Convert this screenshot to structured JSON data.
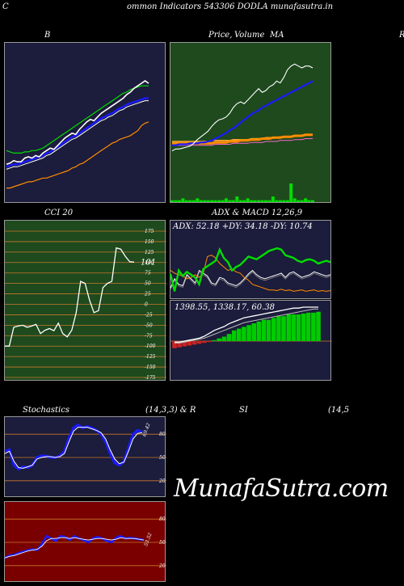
{
  "header": {
    "left": "C",
    "title": "ommon  Indicators 543306  DODLA munafasutra.in"
  },
  "watermark": "MunafaSutra.com",
  "panels": {
    "bollinger": {
      "title": "B"
    },
    "price": {
      "title_a": "Price,",
      "title_b": "Volume",
      "title_c": "MA",
      "right_edge": "R"
    },
    "cci": {
      "title": "CCI 20",
      "value_label": "101",
      "ticks": [
        "175",
        "150",
        "125",
        "100",
        "75",
        "50",
        "25",
        "0",
        "-25",
        "-50",
        "-75",
        "-100",
        "-125",
        "-150",
        "-175"
      ]
    },
    "adx": {
      "title": "ADX  & MACD 12,26,9",
      "readout": "ADX: 52.18  +DY: 34.18  -DY: 10.74"
    },
    "macd": {
      "readout": "1398.55,  1338.17,  60.38"
    },
    "stoch": {
      "title_left": "Stochastics",
      "title_right": "(14,3,3) & R",
      "value_label": "69.42",
      "ticks": [
        "80",
        "50",
        "20"
      ]
    },
    "rsi": {
      "title_left": "SI",
      "title_right": "(14,5",
      "value_label": "53.52",
      "ticks": [
        "80",
        "50",
        "20"
      ]
    }
  },
  "colors": {
    "bollinger_bg": "#1c1c3c",
    "price_bg": "#1e4a1e",
    "cci_bg": "#1e4a1e",
    "adx_bg": "#1c1c3c",
    "stoch_bg": "#1c1c3c",
    "rsi_bg": "#7a0000",
    "level_line": "#c8792a",
    "series_white": "#ffffff",
    "series_blue": "#1a1aff",
    "series_green": "#00dd00",
    "series_orange": "#ff8c00",
    "macd_hist_pos": "#00cc00",
    "macd_hist_neg": "#cc2222"
  },
  "chart_data": [
    {
      "type": "line",
      "name": "bollinger",
      "x": [
        0,
        1,
        2,
        3,
        4,
        5,
        6,
        7,
        8,
        9,
        10,
        11,
        12,
        13,
        14,
        15,
        16,
        17,
        18,
        19,
        20,
        21,
        22,
        23,
        24,
        25,
        26,
        27,
        28,
        29,
        30,
        31,
        32,
        33,
        34,
        35,
        36,
        37,
        38,
        39
      ],
      "series": [
        {
          "values": [
            -1,
            0,
            2,
            1,
            1,
            4,
            5,
            4,
            6,
            5,
            8,
            10,
            12,
            11,
            14,
            17,
            20,
            22,
            24,
            23,
            27,
            30,
            33,
            35,
            34,
            37,
            40,
            42,
            44,
            46,
            48,
            50,
            52,
            55,
            57,
            60,
            62,
            64,
            66,
            64
          ]
        },
        {
          "values": [
            -3,
            -2,
            -1,
            -1,
            0,
            1,
            2,
            3,
            4,
            5,
            6,
            8,
            9,
            11,
            13,
            15,
            17,
            19,
            21,
            22,
            24,
            26,
            28,
            30,
            32,
            34,
            36,
            37,
            39,
            40,
            42,
            44,
            45,
            47,
            48,
            49,
            50,
            51,
            52,
            52
          ]
        },
        {
          "values": [
            -20,
            -20,
            -19,
            -18,
            -17,
            -16,
            -15,
            -15,
            -14,
            -13,
            -12,
            -12,
            -11,
            -10,
            -9,
            -8,
            -7,
            -6,
            -4,
            -3,
            -1,
            0,
            2,
            4,
            6,
            8,
            10,
            12,
            14,
            16,
            17,
            19,
            20,
            21,
            22,
            24,
            26,
            30,
            32,
            33
          ]
        },
        {
          "values": [
            10,
            9,
            8,
            8,
            8,
            9,
            9,
            10,
            10,
            11,
            12,
            14,
            16,
            18,
            20,
            22,
            24,
            26,
            28,
            30,
            32,
            34,
            36,
            38,
            40,
            42,
            44,
            46,
            48,
            50,
            52,
            54,
            56,
            57,
            59,
            60,
            61,
            62,
            62,
            62
          ]
        }
      ]
    },
    {
      "type": "line",
      "name": "price_ma",
      "x": [
        0,
        1,
        2,
        3,
        4,
        5,
        6,
        7,
        8,
        9,
        10,
        11,
        12,
        13,
        14,
        15,
        16,
        17,
        18,
        19,
        20,
        21,
        22,
        23,
        24,
        25,
        26,
        27,
        28,
        29,
        30,
        31,
        32,
        33,
        34,
        35,
        36,
        37,
        38,
        39
      ],
      "series": [
        {
          "values": [
            -6,
            -4,
            -4,
            -3,
            -2,
            -1,
            2,
            6,
            9,
            12,
            15,
            20,
            24,
            27,
            28,
            30,
            34,
            40,
            44,
            46,
            44,
            48,
            52,
            56,
            60,
            56,
            58,
            62,
            64,
            68,
            66,
            72,
            80,
            84,
            86,
            84,
            82,
            84,
            84,
            82
          ]
        },
        {
          "values": [
            0,
            0,
            1,
            1,
            1,
            2,
            2,
            2,
            3,
            3,
            4,
            5,
            7,
            9,
            11,
            13,
            16,
            18,
            21,
            24,
            27,
            30,
            33,
            35,
            37,
            40,
            42,
            44,
            46,
            48,
            50,
            52,
            54,
            56,
            58,
            60,
            62,
            64,
            66,
            68
          ]
        },
        {
          "values": [
            2,
            2,
            2,
            2,
            2,
            2,
            2,
            2,
            2,
            2,
            2,
            2,
            3,
            3,
            3,
            3,
            4,
            4,
            4,
            5,
            5,
            5,
            6,
            6,
            6,
            7,
            7,
            7,
            8,
            8,
            8,
            9,
            9,
            9,
            10,
            10,
            10,
            11,
            11,
            11
          ]
        },
        {
          "values": [
            4,
            4,
            4,
            4,
            4,
            4,
            4,
            4,
            4,
            4,
            4,
            5,
            5,
            5,
            5,
            5,
            5,
            6,
            6,
            6,
            6,
            6,
            7,
            7,
            7,
            7,
            8,
            8,
            8,
            8,
            9,
            9,
            9,
            9,
            10,
            10,
            10,
            11,
            11,
            11
          ]
        },
        {
          "values": [
            0,
            0,
            0,
            0,
            0,
            0,
            0,
            0,
            0,
            0,
            0,
            0,
            1,
            1,
            1,
            1,
            1,
            2,
            2,
            2,
            2,
            2,
            3,
            3,
            3,
            3,
            4,
            4,
            4,
            4,
            5,
            5,
            5,
            5,
            6,
            6,
            6,
            7,
            7,
            7
          ]
        }
      ],
      "volume": [
        1,
        1,
        1,
        2,
        1,
        1,
        1,
        2,
        1,
        1,
        1,
        1,
        1,
        1,
        1,
        2,
        1,
        1,
        3,
        1,
        1,
        2,
        1,
        1,
        1,
        1,
        1,
        1,
        3,
        1,
        1,
        1,
        1,
        10,
        2,
        1,
        1,
        2,
        1,
        1
      ]
    },
    {
      "type": "line",
      "name": "cci",
      "ylim": [
        -175,
        175
      ],
      "x": [
        0,
        1,
        2,
        3,
        4,
        5,
        6,
        7,
        8,
        9,
        10,
        11,
        12,
        13,
        14,
        15,
        16,
        17,
        18,
        19,
        20,
        21,
        22,
        23,
        24,
        25,
        26,
        27,
        28,
        29
      ],
      "values": [
        -100,
        -100,
        -55,
        -52,
        -50,
        -55,
        -52,
        -48,
        -70,
        -62,
        -58,
        -63,
        -45,
        -70,
        -78,
        -62,
        -20,
        55,
        50,
        10,
        -20,
        -15,
        40,
        50,
        55,
        135,
        132,
        115,
        102,
        101
      ]
    },
    {
      "type": "line",
      "name": "adx",
      "x": [
        0,
        1,
        2,
        3,
        4,
        5,
        6,
        7,
        8,
        9,
        10,
        11,
        12,
        13,
        14,
        15,
        16,
        17,
        18,
        19,
        20,
        21,
        22,
        23,
        24,
        25,
        26,
        27,
        28,
        29,
        30,
        31,
        32,
        33,
        34,
        35,
        36,
        37,
        38,
        39
      ],
      "series": [
        {
          "values": [
            35,
            10,
            40,
            32,
            38,
            34,
            30,
            20,
            42,
            46,
            50,
            54,
            70,
            58,
            52,
            40,
            45,
            48,
            54,
            60,
            58,
            56,
            60,
            64,
            68,
            70,
            72,
            70,
            62,
            60,
            58,
            54,
            52,
            55,
            56,
            54,
            50,
            52,
            54,
            52
          ]
        },
        {
          "values": [
            15,
            28,
            20,
            18,
            34,
            28,
            22,
            40,
            36,
            32,
            22,
            20,
            30,
            28,
            22,
            20,
            18,
            22,
            28,
            35,
            40,
            34,
            30,
            28,
            30,
            32,
            34,
            36,
            30,
            36,
            38,
            34,
            30,
            32,
            34,
            38,
            36,
            34,
            32,
            34
          ]
        },
        {
          "values": [
            40,
            36,
            34,
            32,
            28,
            30,
            34,
            30,
            36,
            60,
            62,
            58,
            50,
            45,
            40,
            42,
            38,
            36,
            30,
            26,
            20,
            18,
            16,
            14,
            12,
            12,
            11,
            13,
            11,
            12,
            10,
            11,
            12,
            10,
            11,
            12,
            10,
            11,
            10,
            11
          ]
        }
      ]
    },
    {
      "type": "line",
      "name": "macd",
      "x": [
        0,
        1,
        2,
        3,
        4,
        5,
        6,
        7,
        8,
        9,
        10,
        11,
        12,
        13,
        14,
        15,
        16,
        17,
        18,
        19,
        20,
        21,
        22,
        23,
        24,
        25,
        26,
        27,
        28,
        29
      ],
      "series": [
        {
          "values": [
            -1,
            -1,
            0,
            1,
            2,
            3,
            5,
            8,
            11,
            13,
            15,
            18,
            20,
            22,
            24,
            25,
            26,
            27,
            28,
            29,
            30,
            31,
            32,
            33,
            34,
            34,
            35,
            35,
            35,
            35
          ]
        },
        {
          "values": [
            -2,
            -2,
            -1,
            0,
            1,
            2,
            3,
            5,
            7,
            9,
            11,
            13,
            15,
            17,
            19,
            20,
            21,
            22,
            23,
            24,
            25,
            26,
            27,
            28,
            29,
            30,
            31,
            32,
            33,
            33
          ]
        }
      ],
      "histogram": [
        -8,
        -7,
        -6,
        -5,
        -4,
        -3,
        -2,
        -1,
        1,
        3,
        5,
        8,
        12,
        14,
        16,
        18,
        20,
        22,
        24,
        24,
        26,
        28,
        28,
        30,
        30,
        30,
        31,
        32,
        32,
        33
      ]
    },
    {
      "type": "line",
      "name": "stochastics",
      "ylim": [
        0,
        100
      ],
      "x": [
        0,
        1,
        2,
        3,
        4,
        5,
        6,
        7,
        8,
        9,
        10,
        11,
        12,
        13,
        14,
        15,
        16,
        17,
        18,
        19,
        20,
        21,
        22,
        23,
        24,
        25,
        26,
        27,
        28,
        29,
        30
      ],
      "series": [
        {
          "values": [
            58,
            60,
            40,
            35,
            38,
            37,
            40,
            50,
            52,
            52,
            50,
            50,
            52,
            58,
            75,
            88,
            92,
            88,
            90,
            88,
            85,
            80,
            70,
            55,
            43,
            40,
            45,
            62,
            80,
            85,
            83
          ]
        },
        {
          "values": [
            55,
            58,
            45,
            37,
            36,
            38,
            40,
            48,
            50,
            51,
            51,
            50,
            51,
            55,
            70,
            84,
            89,
            89,
            89,
            87,
            85,
            82,
            74,
            60,
            48,
            42,
            44,
            58,
            74,
            81,
            82
          ]
        }
      ]
    },
    {
      "type": "line",
      "name": "rsi",
      "ylim": [
        0,
        100
      ],
      "x": [
        0,
        1,
        2,
        3,
        4,
        5,
        6,
        7,
        8,
        9,
        10,
        11,
        12,
        13,
        14,
        15,
        16,
        17,
        18,
        19,
        20,
        21,
        22,
        23,
        24,
        25,
        26,
        27,
        28,
        29,
        30
      ],
      "series": [
        {
          "values": [
            30,
            33,
            34,
            36,
            38,
            40,
            41,
            40,
            48,
            58,
            55,
            52,
            58,
            57,
            53,
            58,
            55,
            53,
            50,
            55,
            57,
            55,
            52,
            50,
            56,
            58,
            55,
            56,
            55,
            54,
            53
          ]
        },
        {
          "values": [
            30,
            32,
            33,
            35,
            37,
            39,
            40,
            41,
            45,
            52,
            55,
            55,
            56,
            56,
            55,
            56,
            55,
            54,
            53,
            54,
            55,
            55,
            54,
            53,
            54,
            56,
            55,
            55,
            55,
            54,
            53
          ]
        }
      ]
    }
  ]
}
